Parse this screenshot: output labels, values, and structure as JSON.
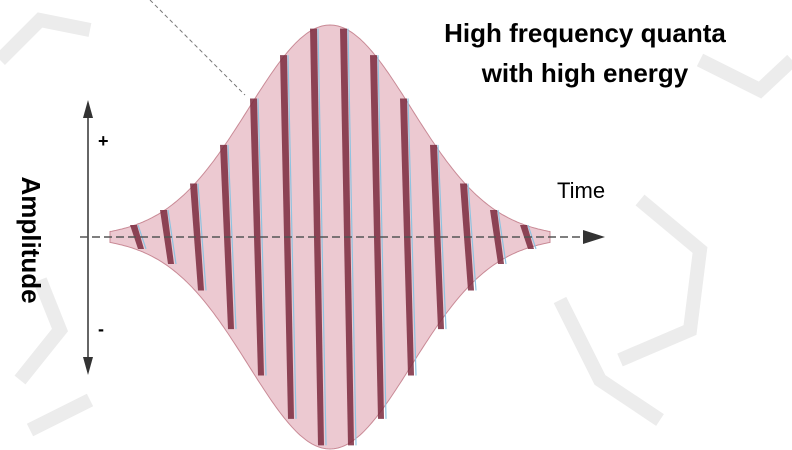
{
  "title_lines": [
    "High frequency quanta",
    "with high energy"
  ],
  "axis": {
    "y_label": "Amplitude",
    "x_label": "Time",
    "plus": "+",
    "minus": "-"
  }
}
